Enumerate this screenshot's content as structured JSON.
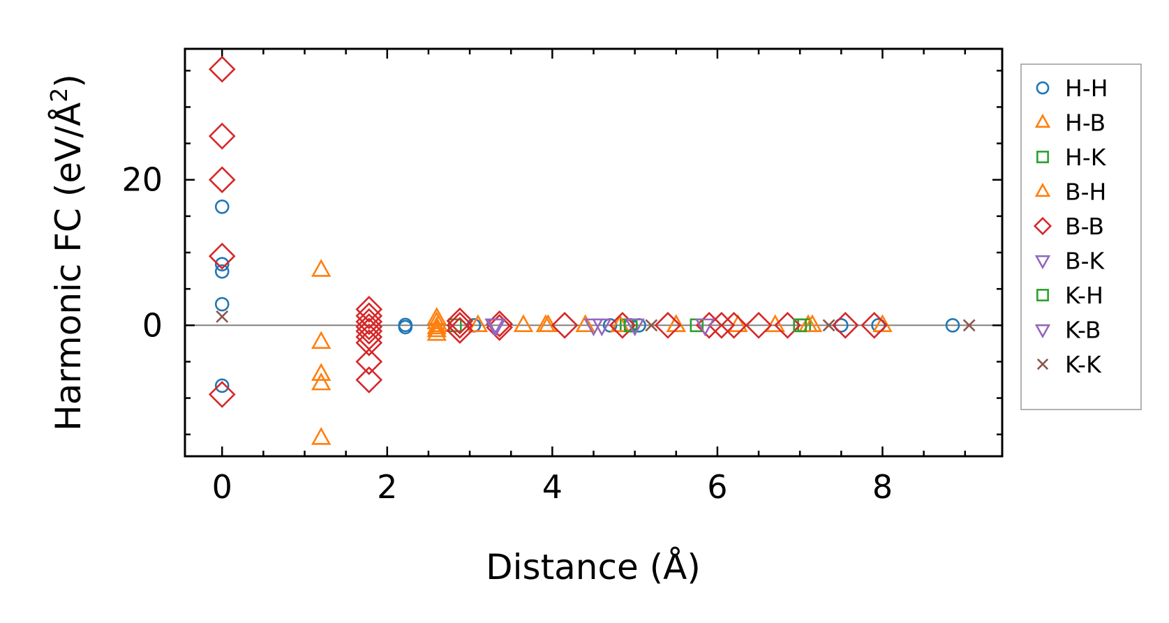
{
  "chart_data": {
    "type": "scatter",
    "title": "",
    "xlabel": "Distance (Å)",
    "ylabel_main": "Harmonic FC (eV/Å",
    "ylabel_sup": "2",
    "ylabel_close": ")",
    "xlim": [
      -0.45,
      9.45
    ],
    "ylim": [
      -18,
      38
    ],
    "xticks": [
      0,
      2,
      4,
      6,
      8
    ],
    "xtick_labels": [
      "0",
      "2",
      "4",
      "6",
      "8"
    ],
    "yticks": [
      0,
      20
    ],
    "ytick_labels": [
      "0",
      "20"
    ],
    "x_minor_step": 0.5,
    "y_minor_step": 5,
    "zero_line": true,
    "legend_position": "outside right",
    "series": [
      {
        "name": "H-H",
        "marker": "circle",
        "color": "#1f77b4",
        "x": [
          0,
          0,
          0,
          0,
          0,
          2.22,
          2.22,
          3.05,
          4.7,
          4.95,
          5.05,
          7.5,
          7.95,
          8.85
        ],
        "y": [
          16.3,
          8.4,
          7.4,
          2.9,
          -8.3,
          0.05,
          -0.25,
          0,
          0,
          0,
          0,
          0,
          0,
          0
        ]
      },
      {
        "name": "H-B",
        "marker": "triangle-up",
        "color": "#ff7f0e",
        "x": [
          1.2,
          1.2,
          1.2,
          1.2,
          1.2,
          2.6,
          2.6,
          2.6,
          2.6,
          2.6,
          3.1,
          3.65,
          3.95,
          4.4,
          5.5,
          6.25,
          6.7,
          7.1,
          8.0
        ],
        "y": [
          7.6,
          -2.3,
          -6.7,
          -8.0,
          -15.5,
          1.0,
          0.4,
          -0.3,
          -0.7,
          -1.2,
          0,
          0,
          0,
          0,
          0,
          0,
          0,
          0,
          0
        ]
      },
      {
        "name": "H-K",
        "marker": "square",
        "color": "#2ca02c",
        "x": [
          2.82,
          4.9,
          5.75,
          7.05
        ],
        "y": [
          0,
          0,
          0,
          0
        ]
      },
      {
        "name": "B-H",
        "marker": "triangle-up",
        "color": "#ff7f0e",
        "x": [
          2.62,
          3.92,
          4.82,
          5.5,
          7.15
        ],
        "y": [
          0,
          0,
          0,
          0,
          0
        ]
      },
      {
        "name": "B-B",
        "marker": "diamond",
        "color": "#d62728",
        "x": [
          0,
          0,
          0,
          0,
          0,
          1.78,
          1.78,
          1.78,
          1.78,
          1.78,
          1.78,
          1.78,
          1.78,
          1.78,
          2.88,
          2.88,
          2.88,
          3.36,
          3.36,
          4.15,
          4.85,
          5.4,
          5.9,
          6.05,
          6.2,
          6.5,
          6.85,
          7.55,
          7.9
        ],
        "y": [
          35.2,
          26.0,
          20.0,
          9.5,
          -9.5,
          2.2,
          1.3,
          0.5,
          -0.2,
          -0.8,
          -1.6,
          -2.4,
          -5.0,
          -7.5,
          0.6,
          0,
          -0.7,
          0.2,
          -0.3,
          0,
          0,
          0,
          0,
          0,
          0,
          0,
          0,
          0,
          0
        ]
      },
      {
        "name": "B-K",
        "marker": "triangle-down",
        "color": "#9467bd",
        "x": [
          3.32,
          4.5,
          5.85
        ],
        "y": [
          0,
          0,
          0
        ]
      },
      {
        "name": "K-H",
        "marker": "square",
        "color": "#2ca02c",
        "x": [
          4.95,
          7.0
        ],
        "y": [
          0,
          0
        ]
      },
      {
        "name": "K-B",
        "marker": "triangle-down",
        "color": "#9467bd",
        "x": [
          3.3,
          4.6,
          5.0
        ],
        "y": [
          0,
          0,
          0
        ]
      },
      {
        "name": "K-K",
        "marker": "x",
        "color": "#8c564b",
        "x": [
          0,
          5.2,
          7.35,
          9.05
        ],
        "y": [
          1.2,
          0,
          0,
          0
        ]
      }
    ]
  }
}
